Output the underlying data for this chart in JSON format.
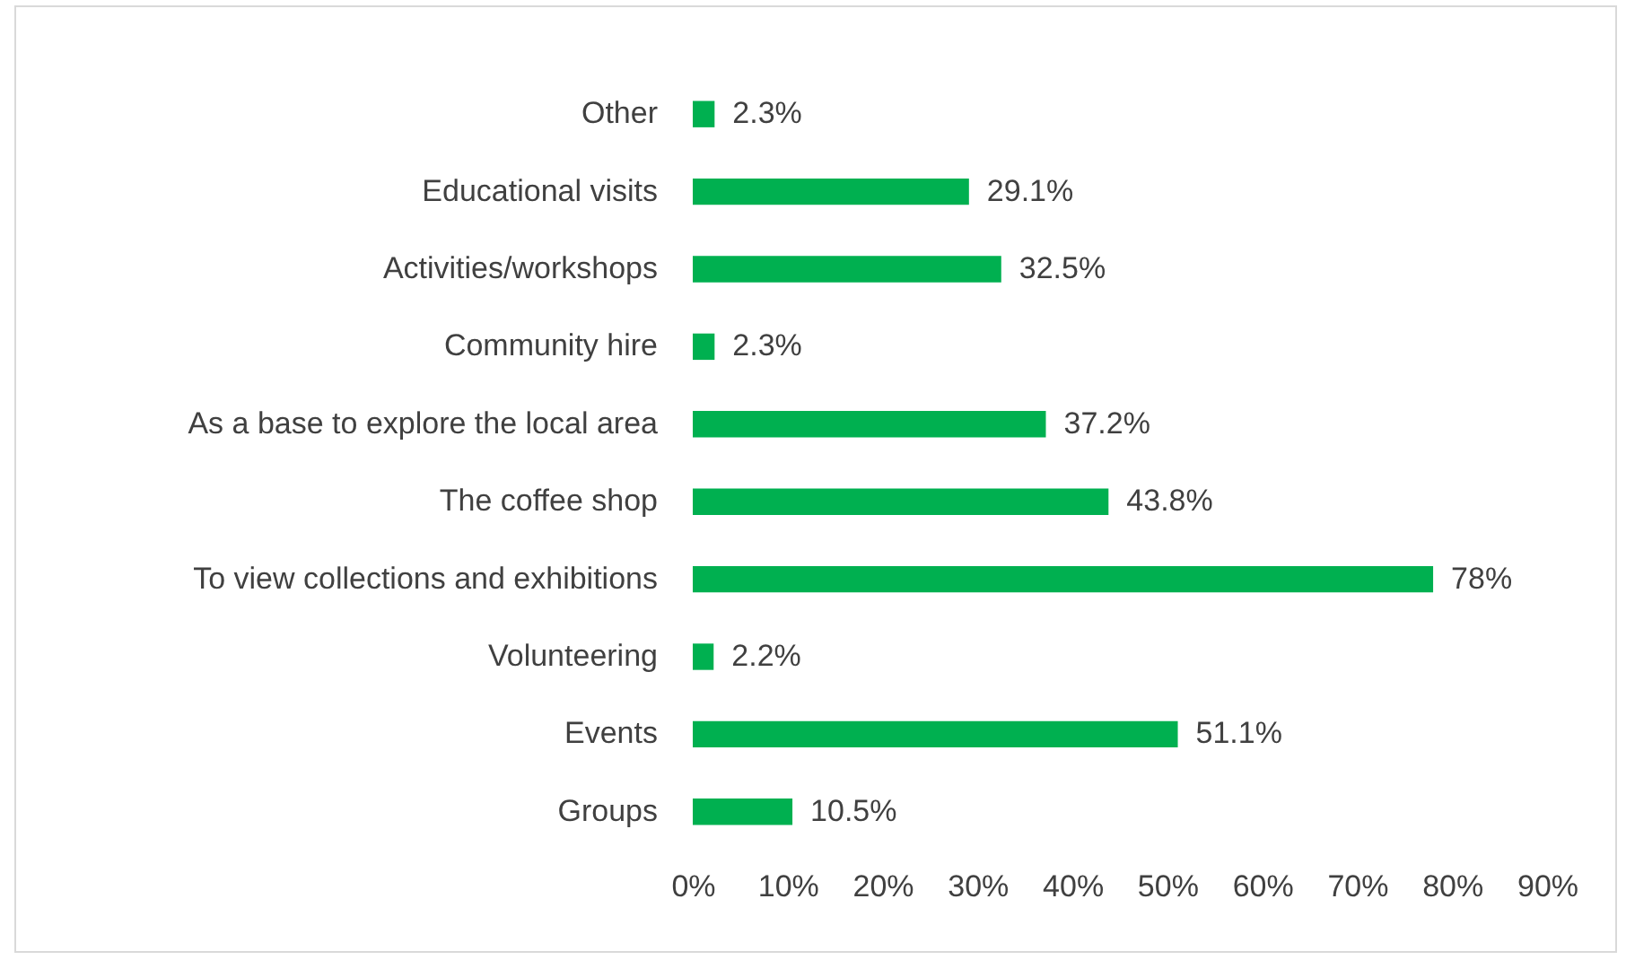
{
  "chart_data": {
    "type": "bar",
    "orientation": "horizontal",
    "categories": [
      "Other",
      "Educational visits",
      "Activities/workshops",
      "Community hire",
      "As a base to explore the local area",
      "The coffee shop",
      "To view collections and exhibitions",
      "Volunteering",
      "Events",
      "Groups"
    ],
    "values": [
      2.3,
      29.1,
      32.5,
      2.3,
      37.2,
      43.8,
      78,
      2.2,
      51.1,
      10.5
    ],
    "value_labels": [
      "2.3%",
      "29.1%",
      "32.5%",
      "2.3%",
      "37.2%",
      "43.8%",
      "78%",
      "2.2%",
      "51.1%",
      "10.5%"
    ],
    "color": "#00b050",
    "xlim": [
      0,
      90
    ],
    "xticks": [
      {
        "value": 0,
        "label": "0%"
      },
      {
        "value": 10,
        "label": "10%"
      },
      {
        "value": 20,
        "label": "20%"
      },
      {
        "value": 30,
        "label": "30%"
      },
      {
        "value": 40,
        "label": "40%"
      },
      {
        "value": 50,
        "label": "50%"
      },
      {
        "value": 60,
        "label": "60%"
      },
      {
        "value": 70,
        "label": "70%"
      },
      {
        "value": 80,
        "label": "80%"
      },
      {
        "value": 90,
        "label": "90%"
      }
    ],
    "grid": false
  }
}
